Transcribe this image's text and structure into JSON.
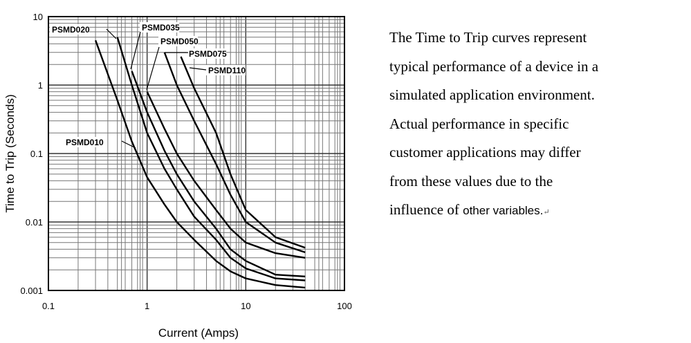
{
  "chart_data": {
    "type": "line",
    "xlabel": "Current (Amps)",
    "ylabel": "Time to Trip (Seconds)",
    "x_scale": "log",
    "y_scale": "log",
    "xlim": [
      0.1,
      100
    ],
    "ylim": [
      0.001,
      10
    ],
    "x_ticks": [
      "0.1",
      "1",
      "10",
      "100"
    ],
    "y_ticks": [
      "0.001",
      "0.01",
      "0.1",
      "1",
      "10"
    ],
    "grid": true,
    "series": [
      {
        "name": "PSMD010",
        "points": [
          [
            0.3,
            4.5
          ],
          [
            0.5,
            0.6
          ],
          [
            0.7,
            0.15
          ],
          [
            1.0,
            0.045
          ],
          [
            1.5,
            0.018
          ],
          [
            2.0,
            0.01
          ],
          [
            3.0,
            0.0055
          ],
          [
            5.0,
            0.0027
          ],
          [
            7.0,
            0.0019
          ],
          [
            10.0,
            0.0015
          ],
          [
            20.0,
            0.0012
          ],
          [
            40.0,
            0.0011
          ]
        ]
      },
      {
        "name": "PSMD020",
        "points": [
          [
            0.5,
            5.0
          ],
          [
            0.7,
            1.0
          ],
          [
            1.0,
            0.2
          ],
          [
            1.5,
            0.06
          ],
          [
            2.0,
            0.03
          ],
          [
            3.0,
            0.012
          ],
          [
            5.0,
            0.0055
          ],
          [
            7.0,
            0.003
          ],
          [
            10.0,
            0.0021
          ],
          [
            20.0,
            0.0015
          ],
          [
            40.0,
            0.0014
          ]
        ]
      },
      {
        "name": "PSMD035",
        "points": [
          [
            0.7,
            1.6
          ],
          [
            1.0,
            0.4
          ],
          [
            1.5,
            0.11
          ],
          [
            2.0,
            0.05
          ],
          [
            3.0,
            0.02
          ],
          [
            5.0,
            0.008
          ],
          [
            7.0,
            0.004
          ],
          [
            10.0,
            0.0027
          ],
          [
            20.0,
            0.0017
          ],
          [
            40.0,
            0.0016
          ]
        ]
      },
      {
        "name": "PSMD050",
        "points": [
          [
            1.0,
            0.8
          ],
          [
            1.5,
            0.23
          ],
          [
            2.0,
            0.1
          ],
          [
            3.0,
            0.04
          ],
          [
            5.0,
            0.015
          ],
          [
            7.0,
            0.008
          ],
          [
            10.0,
            0.005
          ],
          [
            20.0,
            0.0035
          ],
          [
            40.0,
            0.003
          ]
        ]
      },
      {
        "name": "PSMD075",
        "points": [
          [
            1.5,
            3.0
          ],
          [
            2.0,
            1.0
          ],
          [
            3.0,
            0.3
          ],
          [
            5.0,
            0.07
          ],
          [
            7.0,
            0.025
          ],
          [
            10.0,
            0.01
          ],
          [
            20.0,
            0.005
          ],
          [
            40.0,
            0.0036
          ]
        ]
      },
      {
        "name": "PSMD110",
        "points": [
          [
            2.2,
            2.6
          ],
          [
            3.0,
            0.9
          ],
          [
            5.0,
            0.2
          ],
          [
            7.0,
            0.05
          ],
          [
            10.0,
            0.015
          ],
          [
            20.0,
            0.006
          ],
          [
            40.0,
            0.0042
          ]
        ]
      }
    ]
  },
  "description": {
    "lines": [
      "The Time to Trip curves represent",
      "typical performance of a device in a",
      "simulated application environment.",
      "Actual performance in specific",
      "customer applications may differ",
      "from these values due to the"
    ],
    "last_line_serif": "influence of ",
    "last_line_sans": "other variables.",
    "return_mark": "↵"
  }
}
